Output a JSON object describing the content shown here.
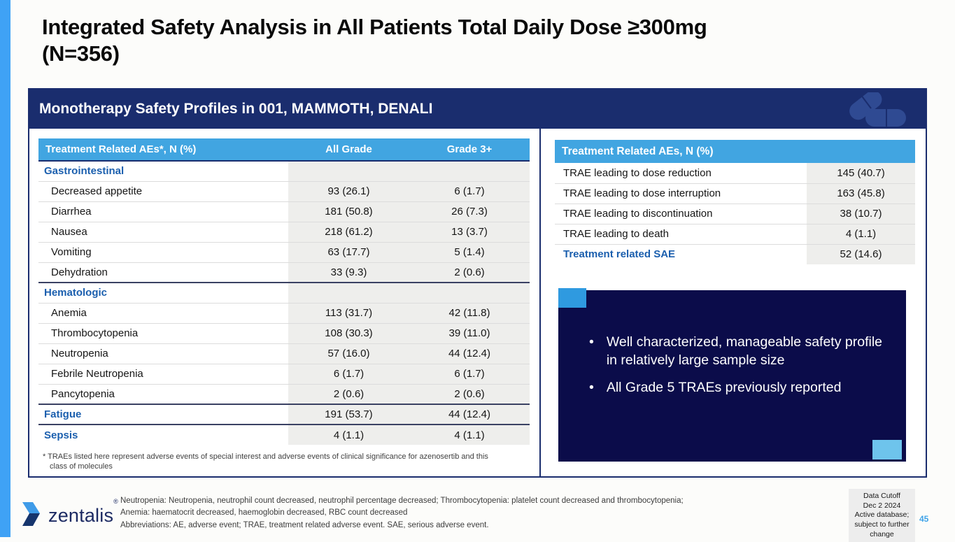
{
  "colors": {
    "accent_blue": "#41a5e1",
    "strip_blue": "#3fa2f5",
    "navy_band": "#1a2d6e",
    "dark_box": "#0b0c4a",
    "section_blue": "#1b5fae",
    "value_cell_shade": "#eeeeec",
    "page_number_blue": "#3fa3e8"
  },
  "header": {
    "title_line1": "Integrated Safety Analysis in All Patients Total Daily Dose ≥300mg",
    "title_line2": "(N=356)"
  },
  "panel": {
    "band_title": "Monotherapy Safety Profiles in 001, MAMMOTH, DENALI"
  },
  "left_table": {
    "headers": [
      "Treatment Related AEs*, N (%)",
      "All Grade",
      "Grade 3+"
    ],
    "rows": [
      {
        "type": "section",
        "label": "Gastrointestinal",
        "all_grade": "",
        "grade3": ""
      },
      {
        "type": "item",
        "label": "Decreased appetite",
        "all_grade": "93 (26.1)",
        "grade3": "6 (1.7)"
      },
      {
        "type": "item",
        "label": "Diarrhea",
        "all_grade": "181 (50.8)",
        "grade3": "26 (7.3)"
      },
      {
        "type": "item",
        "label": "Nausea",
        "all_grade": "218 (61.2)",
        "grade3": "13 (3.7)"
      },
      {
        "type": "item",
        "label": "Vomiting",
        "all_grade": "63 (17.7)",
        "grade3": "5 (1.4)"
      },
      {
        "type": "item",
        "label": "Dehydration",
        "all_grade": "33 (9.3)",
        "grade3": "2 (0.6)",
        "divider_after": true
      },
      {
        "type": "section",
        "label": "Hematologic",
        "all_grade": "",
        "grade3": ""
      },
      {
        "type": "item",
        "label": "Anemia",
        "all_grade": "113 (31.7)",
        "grade3": "42 (11.8)"
      },
      {
        "type": "item",
        "label": "Thrombocytopenia",
        "all_grade": "108 (30.3)",
        "grade3": "39 (11.0)"
      },
      {
        "type": "item",
        "label": "Neutropenia",
        "all_grade": "57 (16.0)",
        "grade3": "44 (12.4)"
      },
      {
        "type": "item",
        "label": "Febrile Neutropenia",
        "all_grade": "6 (1.7)",
        "grade3": "6 (1.7)"
      },
      {
        "type": "item",
        "label": "Pancytopenia",
        "all_grade": "2 (0.6)",
        "grade3": "2 (0.6)",
        "divider_after": true
      },
      {
        "type": "section_row",
        "label": "Fatigue",
        "all_grade": "191 (53.7)",
        "grade3": "44 (12.4)",
        "divider_after": true
      },
      {
        "type": "section_row",
        "label": "Sepsis",
        "all_grade": "4 (1.1)",
        "grade3": "4 (1.1)",
        "divider_after": true
      }
    ],
    "footnote": "* TRAEs listed here represent adverse events of special interest and adverse events of clinical significance for azenosertib and this class of molecules"
  },
  "right_table": {
    "header": "Treatment Related AEs, N (%)",
    "rows": [
      {
        "type": "item",
        "label": "TRAE leading to dose reduction",
        "value": "145 (40.7)"
      },
      {
        "type": "item",
        "label": "TRAE leading to dose interruption",
        "value": "163 (45.8)"
      },
      {
        "type": "item",
        "label": "TRAE leading to discontinuation",
        "value": "38 (10.7)"
      },
      {
        "type": "item",
        "label": "TRAE leading to death",
        "value": "4 (1.1)"
      },
      {
        "type": "section_row",
        "label": "Treatment related SAE",
        "value": "52 (14.6)"
      }
    ]
  },
  "summary_box": {
    "bullets": [
      "Well characterized, manageable safety profile in relatively large sample size",
      "All Grade 5 TRAEs previously reported"
    ]
  },
  "footer": {
    "logo_text": "zentalis",
    "logo_reg_mark": "®",
    "notes": [
      "Neutropenia: Neutropenia, neutrophil count decreased, neutrophil percentage decreased; Thrombocytopenia: platelet count decreased and thrombocytopenia;",
      "Anemia: haematocrit decreased, haemoglobin decreased, RBC count decreased",
      "Abbreviations: AE, adverse event; TRAE, treatment related adverse event. SAE, serious adverse event."
    ],
    "data_cutoff_lines": [
      "Data Cutoff",
      "Dec 2 2024",
      "Active database;",
      "subject to further",
      "change"
    ],
    "page_number": "45"
  }
}
